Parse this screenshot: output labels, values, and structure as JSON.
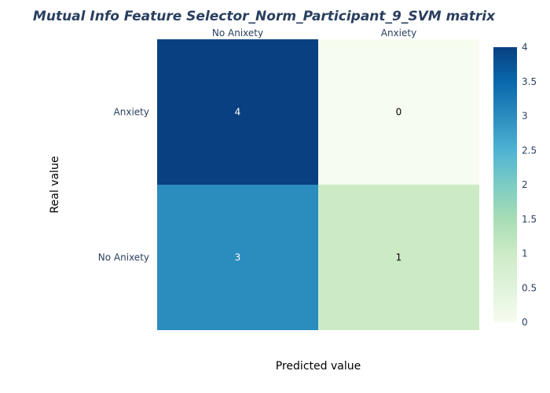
{
  "chart_data": {
    "type": "heatmap",
    "title": "Mutual Info Feature Selector_Norm_Participant_9_SVM matrix",
    "xlabel": "Predicted value",
    "ylabel": "Real value",
    "x_categories": [
      "No Anixety",
      "Anxiety"
    ],
    "y_categories": [
      "Anxiety",
      "No Anixety"
    ],
    "z": [
      [
        4,
        0
      ],
      [
        3,
        1
      ]
    ],
    "zlim": [
      0,
      4
    ],
    "colorscale": "GnBu",
    "colorbar_ticks": [
      "0",
      "0.5",
      "1",
      "1.5",
      "2",
      "2.5",
      "3",
      "3.5",
      "4"
    ],
    "x_axis_side": "top"
  }
}
